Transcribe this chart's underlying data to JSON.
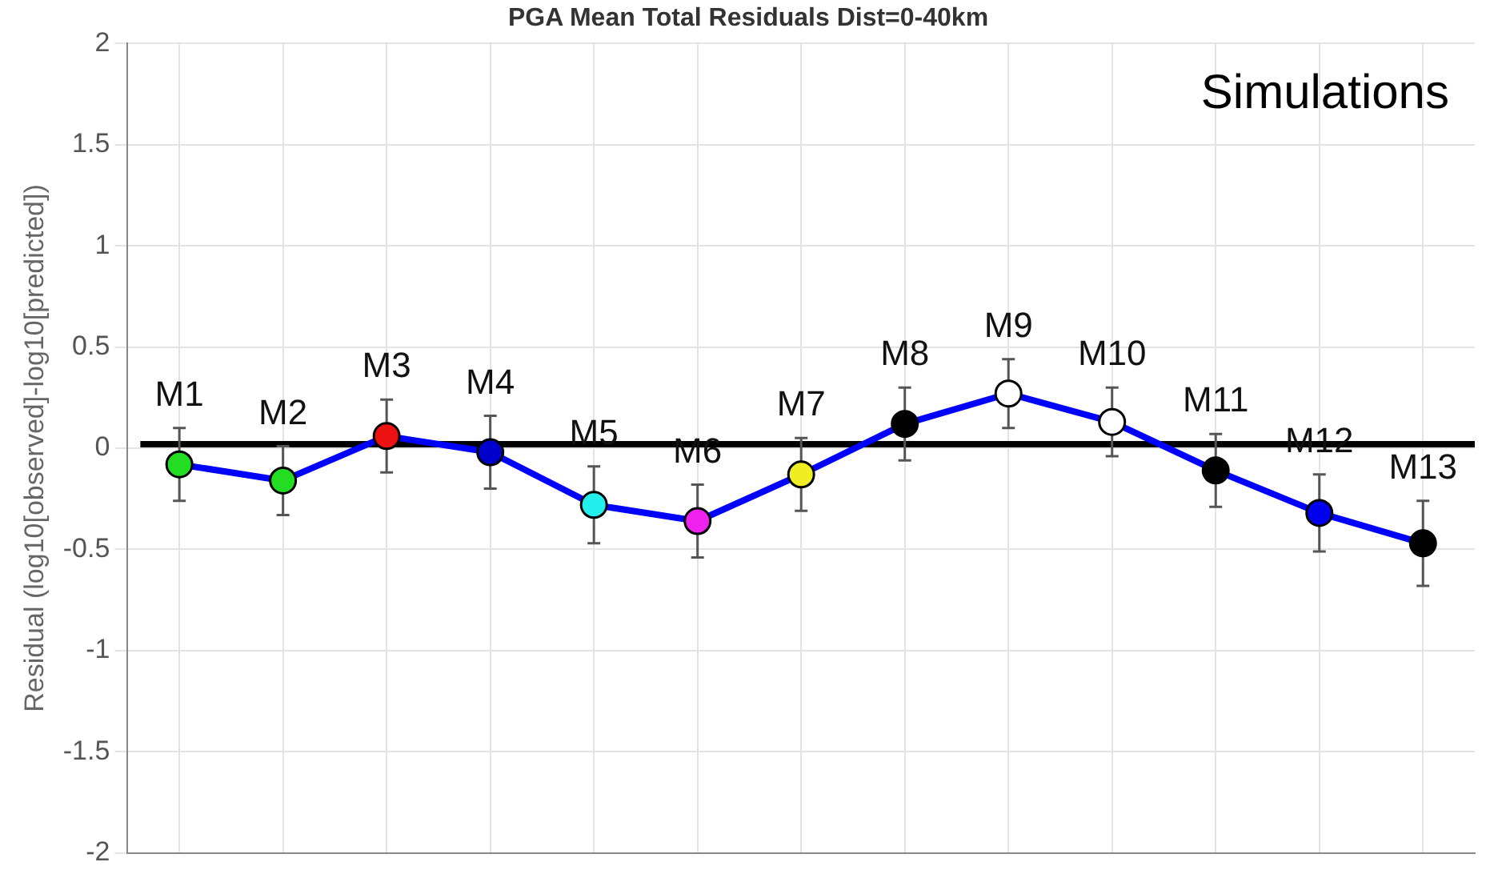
{
  "chart_data": {
    "type": "line",
    "title": "PGA Mean Total Residuals Dist=0-40km",
    "ylabel": "Residual (log10[observed]-log10[predicted])",
    "categories": [
      null,
      null,
      null,
      null,
      null,
      null,
      null,
      null,
      null,
      null,
      null,
      null,
      null
    ],
    "series": [
      {
        "color": "#0000ff",
        "colors": [
          "#22dd22",
          "#22dd22",
          "#ee1111",
          "#0000cc",
          "#22eeee",
          "#ee22ee",
          "#eeee22",
          "#000000",
          "#ffffff",
          "#ffffff",
          "#000000",
          "#0000ee",
          "#000000"
        ],
        "values": [
          -0.08,
          -0.16,
          0.06,
          -0.02,
          -0.28,
          -0.36,
          -0.13,
          0.12,
          0.27,
          0.13,
          -0.11,
          -0.32,
          -0.47
        ],
        "errors": [
          0.18,
          0.17,
          0.18,
          0.18,
          0.19,
          0.18,
          0.18,
          0.18,
          0.17,
          0.17,
          0.18,
          0.19,
          0.21
        ]
      }
    ],
    "ylim": [
      -2,
      2
    ],
    "yticks": [
      -2,
      -1.5,
      -1,
      -0.5,
      0,
      0.5,
      1,
      1.5,
      2
    ],
    "ref_lines": [
      {
        "axis": "y",
        "value": 0.02,
        "color": "#000000"
      }
    ],
    "annotations": [
      "Simulations",
      "M1",
      "M2",
      "M3",
      "M4",
      "M5",
      "M6",
      "M7",
      "M8",
      "M9",
      "M10",
      "M11",
      "M12",
      "M13"
    ],
    "grid": true,
    "legend": false,
    "tick_labels": "y",
    "marker": "circle",
    "line_style": "solid"
  }
}
